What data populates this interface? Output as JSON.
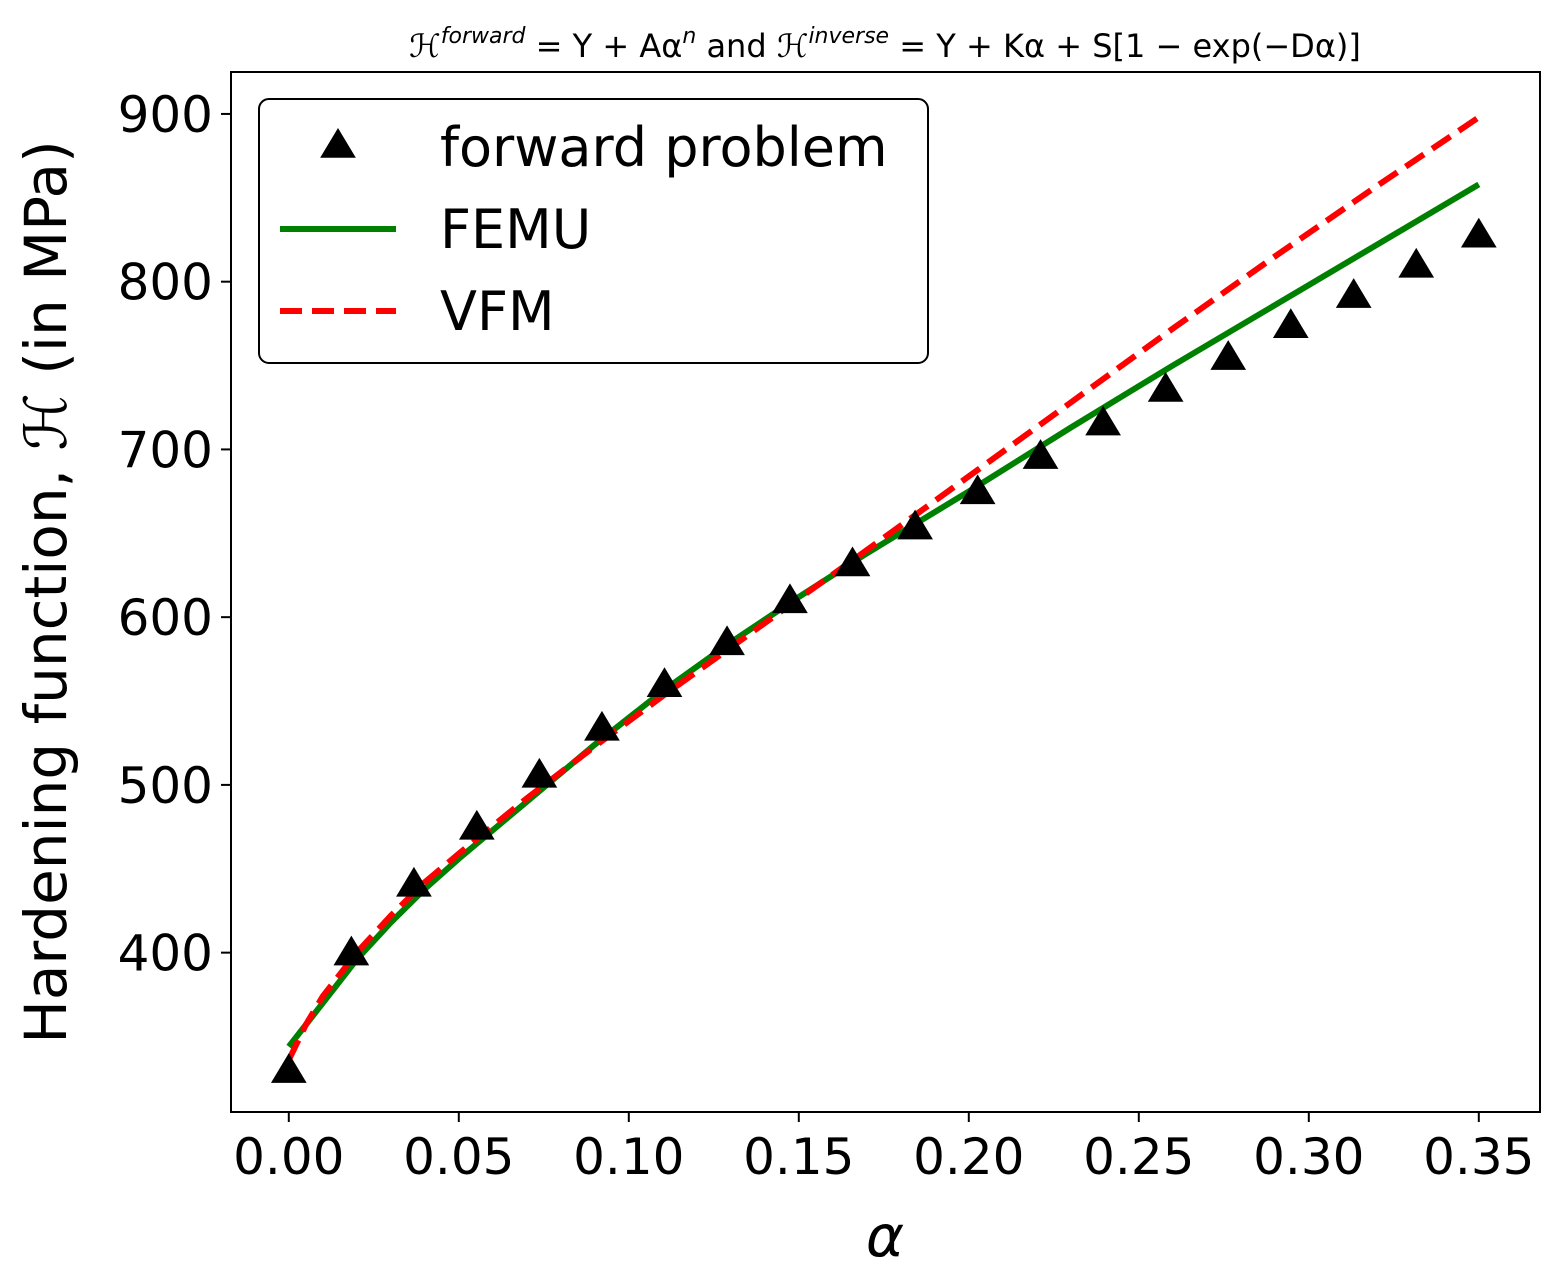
{
  "chart_data": {
    "type": "line",
    "title": "ℋforward = Y + Aαn and ℋinverse = Y + Kα + S[1 − exp(−Dα)]",
    "title_parts": {
      "h1": "ℋ",
      "sup1": "forward",
      "eq1": " = Y + Aα",
      "sup2": "n",
      "mid": " and ",
      "h2": "ℋ",
      "sup3": "inverse",
      "eq2": " = Y + Kα + S[1 − exp(−Dα)]"
    },
    "xlabel": "α",
    "ylabel": "Hardening function, ℋ (in MPa)",
    "xlim": [
      -0.017,
      0.368
    ],
    "ylim": [
      305,
      925
    ],
    "xticks": [
      0.0,
      0.05,
      0.1,
      0.15,
      0.2,
      0.25,
      0.3,
      0.35
    ],
    "xtick_labels": [
      "0.00",
      "0.05",
      "0.10",
      "0.15",
      "0.20",
      "0.25",
      "0.30",
      "0.35"
    ],
    "yticks": [
      400,
      500,
      600,
      700,
      800,
      900
    ],
    "ytick_labels": [
      "400",
      "500",
      "600",
      "700",
      "800",
      "900"
    ],
    "grid": false,
    "legend_position": "top-left",
    "series": [
      {
        "name": "forward problem",
        "kind": "scatter",
        "marker": "triangle",
        "color": "#000000",
        "x": [
          0.0,
          0.0184,
          0.0368,
          0.0553,
          0.0737,
          0.0921,
          0.1105,
          0.1289,
          0.1474,
          0.1658,
          0.1842,
          0.2026,
          0.2211,
          0.2395,
          0.2579,
          0.2763,
          0.2947,
          0.3132,
          0.3316,
          0.35
        ],
        "y": [
          330,
          400,
          441,
          475,
          506,
          534,
          560,
          585,
          610,
          632,
          654,
          675,
          696,
          716,
          736,
          755,
          774,
          792,
          810,
          828
        ]
      },
      {
        "name": "FEMU",
        "kind": "line",
        "style": "solid",
        "color": "#008000",
        "x": [
          0.0,
          0.01,
          0.02,
          0.03,
          0.04,
          0.05,
          0.07,
          0.09,
          0.11,
          0.13,
          0.15,
          0.17,
          0.2,
          0.23,
          0.26,
          0.29,
          0.32,
          0.35
        ],
        "y": [
          344,
          370,
          396,
          418,
          438,
          456,
          490,
          524,
          556,
          585,
          612,
          638,
          675,
          713,
          750,
          786,
          822,
          858
        ]
      },
      {
        "name": "VFM",
        "kind": "line",
        "style": "dashed",
        "color": "#ff0000",
        "x": [
          0.0,
          0.005,
          0.01,
          0.02,
          0.03,
          0.04,
          0.05,
          0.07,
          0.09,
          0.11,
          0.13,
          0.15,
          0.17,
          0.2,
          0.23,
          0.26,
          0.29,
          0.32,
          0.35
        ],
        "y": [
          336,
          357,
          374,
          400,
          422,
          442,
          459,
          492,
          523,
          553,
          582,
          611,
          640,
          684,
          728,
          772,
          815,
          857,
          898
        ]
      }
    ]
  }
}
